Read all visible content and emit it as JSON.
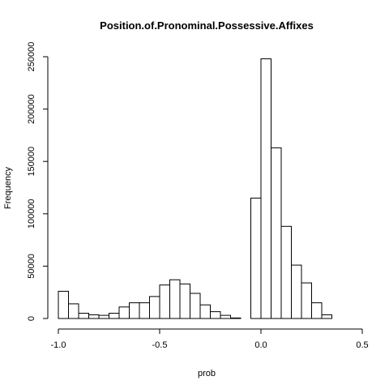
{
  "chart_data": {
    "type": "bar",
    "title": "Position.of.Pronominal.Possessive.Affixes",
    "xlabel": "prob",
    "ylabel": "Frequency",
    "xlim": [
      -1.0,
      0.5
    ],
    "ylim": [
      0,
      250000
    ],
    "x_ticks": [
      -1.0,
      -0.5,
      0.0,
      0.5
    ],
    "x_tick_labels": [
      "-1.0",
      "-0.5",
      "0.0",
      "0.5"
    ],
    "y_ticks": [
      0,
      50000,
      100000,
      150000,
      200000,
      250000
    ],
    "y_tick_labels": [
      "0",
      "50000",
      "100000",
      "150000",
      "200000",
      "250000"
    ],
    "bin_width": 0.05,
    "bins": [
      {
        "start": -1.0,
        "value": 26000
      },
      {
        "start": -0.95,
        "value": 14000
      },
      {
        "start": -0.9,
        "value": 5000
      },
      {
        "start": -0.85,
        "value": 3500
      },
      {
        "start": -0.8,
        "value": 3000
      },
      {
        "start": -0.75,
        "value": 5000
      },
      {
        "start": -0.7,
        "value": 11000
      },
      {
        "start": -0.65,
        "value": 15000
      },
      {
        "start": -0.6,
        "value": 15000
      },
      {
        "start": -0.55,
        "value": 21000
      },
      {
        "start": -0.5,
        "value": 32000
      },
      {
        "start": -0.45,
        "value": 37000
      },
      {
        "start": -0.4,
        "value": 33000
      },
      {
        "start": -0.35,
        "value": 24000
      },
      {
        "start": -0.3,
        "value": 13000
      },
      {
        "start": -0.25,
        "value": 6500
      },
      {
        "start": -0.2,
        "value": 3000
      },
      {
        "start": -0.15,
        "value": 500
      },
      {
        "start": -0.1,
        "value": 0
      },
      {
        "start": -0.05,
        "value": 115000
      },
      {
        "start": 0.0,
        "value": 248000
      },
      {
        "start": 0.05,
        "value": 163000
      },
      {
        "start": 0.1,
        "value": 88000
      },
      {
        "start": 0.15,
        "value": 51000
      },
      {
        "start": 0.2,
        "value": 34000
      },
      {
        "start": 0.25,
        "value": 15000
      },
      {
        "start": 0.3,
        "value": 3500
      }
    ]
  }
}
